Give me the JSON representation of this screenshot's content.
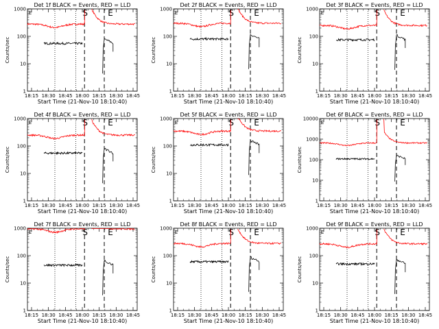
{
  "chart_data": {
    "type": "line",
    "ylabel": "Counts/sec",
    "xlabel": "Start Time (21-Nov-10 18:10:40)",
    "y_scale": "log",
    "x_ticks": [
      "18:15",
      "18:30",
      "18:45",
      "18:00",
      "18:15",
      "18:30",
      "18:45"
    ],
    "y_ticks": [
      "1",
      "10",
      "100",
      "1000"
    ],
    "y_ticks_big": [
      "1",
      "10",
      "100",
      "1000",
      "10000"
    ],
    "dotted_lines_frac": [
      0.25,
      0.44
    ],
    "dashed_lines_frac": [
      0.52,
      0.7
    ],
    "markers": {
      "s": "S",
      "e": "E"
    },
    "series_colors": {
      "events": "#000000",
      "lld": "#ff0000"
    },
    "panels": [
      {
        "title": "Det 1f BLACK = Events, RED = LLD",
        "lld": 280,
        "events": 55,
        "ymax": 1000
      },
      {
        "title": "Det 2f BLACK = Events, RED = LLD",
        "lld": 300,
        "events": 80,
        "ymax": 1000
      },
      {
        "title": "Det 3f BLACK = Events, RED = LLD",
        "lld": 250,
        "events": 75,
        "ymax": 1000
      },
      {
        "title": "Det 4f BLACK = Events, RED = LLD",
        "lld": 250,
        "events": 55,
        "ymax": 1000
      },
      {
        "title": "Det 5f BLACK = Events, RED = LLD",
        "lld": 350,
        "events": 110,
        "ymax": 1000
      },
      {
        "title": "Det 6f BLACK = Events, RED = LLD",
        "lld": 650,
        "events": 110,
        "ymax": 10000
      },
      {
        "title": "Det 7f BLACK = Events, RED = LLD",
        "lld": 950,
        "events": 45,
        "ymax": 1000
      },
      {
        "title": "Det 8f BLACK = Events, RED = LLD",
        "lld": 280,
        "events": 60,
        "ymax": 1000
      },
      {
        "title": "Det 9f BLACK = Events, RED = LLD",
        "lld": 270,
        "events": 50,
        "ymax": 1000
      }
    ]
  }
}
